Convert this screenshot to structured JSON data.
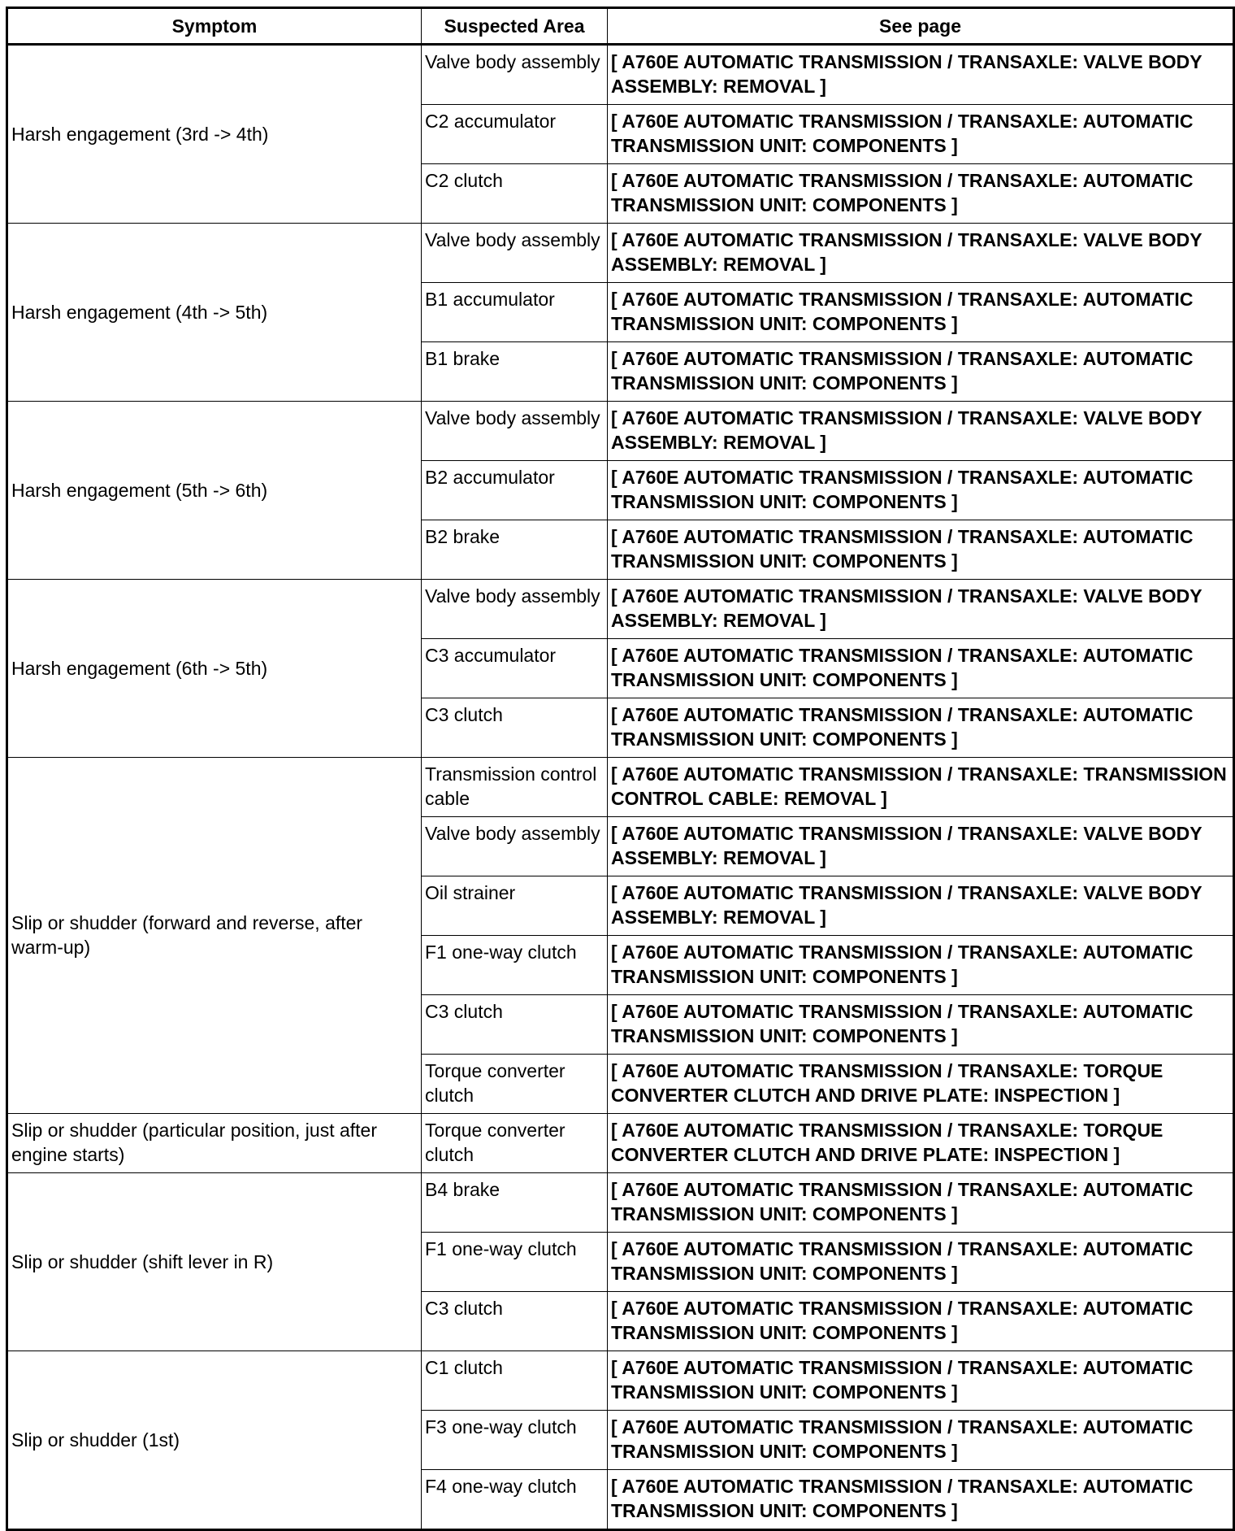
{
  "headers": {
    "symptom": "Symptom",
    "area": "Suspected Area",
    "page": "See page"
  },
  "groups": [
    {
      "symptom": "Harsh engagement (3rd -> 4th)",
      "rows": [
        {
          "area": "Valve body assembly",
          "page": "[ A760E AUTOMATIC TRANSMISSION / TRANSAXLE: VALVE BODY ASSEMBLY: REMOVAL ]"
        },
        {
          "area": "C2 accumulator",
          "page": "[ A760E AUTOMATIC TRANSMISSION / TRANSAXLE: AUTOMATIC TRANSMISSION UNIT: COMPONENTS ]"
        },
        {
          "area": "C2 clutch",
          "page": "[ A760E AUTOMATIC TRANSMISSION / TRANSAXLE: AUTOMATIC TRANSMISSION UNIT: COMPONENTS ]"
        }
      ]
    },
    {
      "symptom": "Harsh engagement (4th -> 5th)",
      "rows": [
        {
          "area": "Valve body assembly",
          "page": "[ A760E AUTOMATIC TRANSMISSION / TRANSAXLE: VALVE BODY ASSEMBLY: REMOVAL ]"
        },
        {
          "area": "B1 accumulator",
          "page": "[ A760E AUTOMATIC TRANSMISSION / TRANSAXLE: AUTOMATIC TRANSMISSION UNIT: COMPONENTS ]"
        },
        {
          "area": "B1 brake",
          "page": "[ A760E AUTOMATIC TRANSMISSION / TRANSAXLE: AUTOMATIC TRANSMISSION UNIT: COMPONENTS ]"
        }
      ]
    },
    {
      "symptom": "Harsh engagement (5th -> 6th)",
      "rows": [
        {
          "area": "Valve body assembly",
          "page": "[ A760E AUTOMATIC TRANSMISSION / TRANSAXLE: VALVE BODY ASSEMBLY: REMOVAL ]"
        },
        {
          "area": "B2 accumulator",
          "page": "[ A760E AUTOMATIC TRANSMISSION / TRANSAXLE: AUTOMATIC TRANSMISSION UNIT: COMPONENTS ]"
        },
        {
          "area": "B2 brake",
          "page": "[ A760E AUTOMATIC TRANSMISSION / TRANSAXLE: AUTOMATIC TRANSMISSION UNIT: COMPONENTS ]"
        }
      ]
    },
    {
      "symptom": "Harsh engagement (6th -> 5th)",
      "rows": [
        {
          "area": "Valve body assembly",
          "page": "[ A760E AUTOMATIC TRANSMISSION / TRANSAXLE: VALVE BODY ASSEMBLY: REMOVAL ]"
        },
        {
          "area": "C3 accumulator",
          "page": "[ A760E AUTOMATIC TRANSMISSION / TRANSAXLE: AUTOMATIC TRANSMISSION UNIT: COMPONENTS ]"
        },
        {
          "area": "C3 clutch",
          "page": "[ A760E AUTOMATIC TRANSMISSION / TRANSAXLE: AUTOMATIC TRANSMISSION UNIT: COMPONENTS ]"
        }
      ]
    },
    {
      "symptom": "Slip or shudder (forward and reverse, after warm-up)",
      "rows": [
        {
          "area": "Transmission control cable",
          "page": "[ A760E AUTOMATIC TRANSMISSION / TRANSAXLE: TRANSMISSION CONTROL CABLE: REMOVAL ]"
        },
        {
          "area": "Valve body assembly",
          "page": "[ A760E AUTOMATIC TRANSMISSION / TRANSAXLE: VALVE BODY ASSEMBLY: REMOVAL ]"
        },
        {
          "area": "Oil strainer",
          "page": "[ A760E AUTOMATIC TRANSMISSION / TRANSAXLE: VALVE BODY ASSEMBLY: REMOVAL ]"
        },
        {
          "area": "F1 one-way clutch",
          "page": "[ A760E AUTOMATIC TRANSMISSION / TRANSAXLE: AUTOMATIC TRANSMISSION UNIT: COMPONENTS ]"
        },
        {
          "area": "C3 clutch",
          "page": "[ A760E AUTOMATIC TRANSMISSION / TRANSAXLE: AUTOMATIC TRANSMISSION UNIT: COMPONENTS ]"
        },
        {
          "area": "Torque converter clutch",
          "page": "[ A760E AUTOMATIC TRANSMISSION / TRANSAXLE: TORQUE CONVERTER CLUTCH AND DRIVE PLATE: INSPECTION ]"
        }
      ]
    },
    {
      "symptom": "Slip or shudder (particular position, just after engine starts)",
      "top": true,
      "rows": [
        {
          "area": "Torque converter clutch",
          "page": "[ A760E AUTOMATIC TRANSMISSION / TRANSAXLE: TORQUE CONVERTER CLUTCH AND DRIVE PLATE: INSPECTION ]"
        }
      ]
    },
    {
      "symptom": "Slip or shudder (shift lever in R)",
      "rows": [
        {
          "area": "B4 brake",
          "page": "[ A760E AUTOMATIC TRANSMISSION / TRANSAXLE: AUTOMATIC TRANSMISSION UNIT: COMPONENTS ]"
        },
        {
          "area": "F1 one-way clutch",
          "page": "[ A760E AUTOMATIC TRANSMISSION / TRANSAXLE: AUTOMATIC TRANSMISSION UNIT: COMPONENTS ]"
        },
        {
          "area": "C3 clutch",
          "page": "[ A760E AUTOMATIC TRANSMISSION / TRANSAXLE: AUTOMATIC TRANSMISSION UNIT: COMPONENTS ]"
        }
      ]
    },
    {
      "symptom": "Slip or shudder (1st)",
      "rows": [
        {
          "area": "C1 clutch",
          "page": "[ A760E AUTOMATIC TRANSMISSION / TRANSAXLE: AUTOMATIC TRANSMISSION UNIT: COMPONENTS ]"
        },
        {
          "area": "F3 one-way clutch",
          "page": "[ A760E AUTOMATIC TRANSMISSION / TRANSAXLE: AUTOMATIC TRANSMISSION UNIT: COMPONENTS ]"
        },
        {
          "area": "F4 one-way clutch",
          "page": "[ A760E AUTOMATIC TRANSMISSION / TRANSAXLE: AUTOMATIC TRANSMISSION UNIT: COMPONENTS ]"
        }
      ]
    }
  ]
}
